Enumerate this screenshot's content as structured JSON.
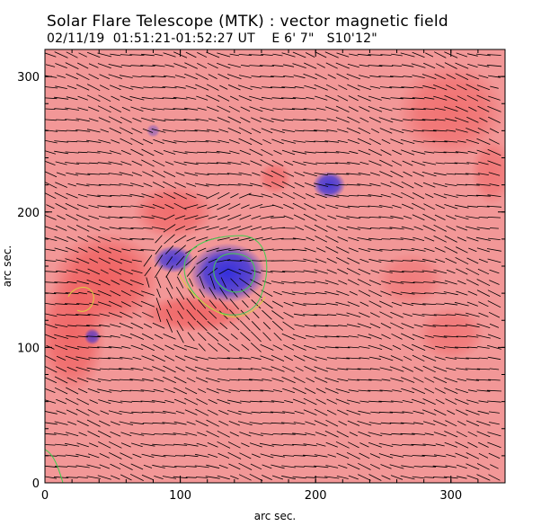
{
  "header": {
    "title": "Solar Flare Telescope (MTK) : vector magnetic field",
    "subtitle": "02/11/19  01:51:21-01:52:27 UT    E 6' 7\"   S10'12\""
  },
  "chart_data": {
    "type": "heatmap",
    "xlabel": "arc sec.",
    "ylabel": "arc sec.",
    "xlim": [
      0,
      340
    ],
    "ylim": [
      0,
      320
    ],
    "x_ticks": [
      0,
      100,
      200,
      300
    ],
    "y_ticks": [
      0,
      100,
      200,
      300
    ],
    "colors": {
      "positive": "#f06060",
      "negative": "#2a2ae0",
      "contour": "#3fcf4f",
      "vectors": "#000000"
    },
    "positive_regions": [
      {
        "x": 45,
        "y": 150,
        "rx": 40,
        "ry": 35,
        "s": 1.0
      },
      {
        "x": 20,
        "y": 110,
        "rx": 25,
        "ry": 45,
        "s": 0.9
      },
      {
        "x": 95,
        "y": 200,
        "rx": 30,
        "ry": 20,
        "s": 0.8
      },
      {
        "x": 110,
        "y": 125,
        "rx": 40,
        "ry": 14,
        "s": 0.9
      },
      {
        "x": 170,
        "y": 225,
        "rx": 12,
        "ry": 12,
        "s": 0.7
      },
      {
        "x": 300,
        "y": 275,
        "rx": 40,
        "ry": 35,
        "s": 0.7
      },
      {
        "x": 270,
        "y": 150,
        "rx": 25,
        "ry": 20,
        "s": 0.5
      },
      {
        "x": 300,
        "y": 110,
        "rx": 25,
        "ry": 20,
        "s": 0.6
      },
      {
        "x": 330,
        "y": 230,
        "rx": 15,
        "ry": 25,
        "s": 0.6
      }
    ],
    "negative_regions": [
      {
        "x": 135,
        "y": 155,
        "rx": 28,
        "ry": 22,
        "s": 1.0
      },
      {
        "x": 95,
        "y": 165,
        "rx": 15,
        "ry": 10,
        "s": 0.85
      },
      {
        "x": 210,
        "y": 220,
        "rx": 12,
        "ry": 10,
        "s": 0.9
      },
      {
        "x": 35,
        "y": 108,
        "rx": 6,
        "ry": 6,
        "s": 0.7
      },
      {
        "x": 80,
        "y": 260,
        "rx": 5,
        "ry": 5,
        "s": 0.4
      }
    ],
    "vector_field": {
      "angle_deg": -15,
      "spacing_arcsec": 8
    }
  }
}
